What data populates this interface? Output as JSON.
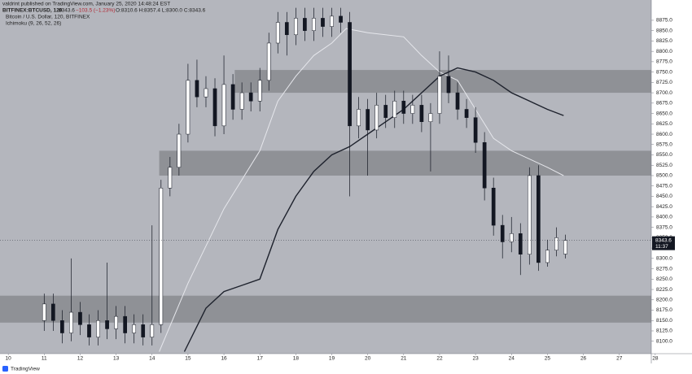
{
  "header": {
    "author": "valdrint published on TradingView.com, January 25, 2020 14:48:24 EST",
    "symbol": "BITFINEX:BTCUSD, 120",
    "last": "8343.6",
    "change": "−103.5 (−1.23%)",
    "ohlc": "O:8310.6 H:8357.4 L:8300.0 C:8343.6",
    "description": "Bitcoin / U.S. Dollar, 120, BITFINEX",
    "indicator": "Ichimoku (9, 26, 52, 26)"
  },
  "chart_data": {
    "type": "candlestick",
    "x": [
      11,
      11.25,
      11.5,
      11.75,
      12,
      12.25,
      12.5,
      12.75,
      13,
      13.25,
      13.5,
      13.75,
      14,
      14.25,
      14.5,
      14.75,
      15,
      15.25,
      15.5,
      15.75,
      16,
      16.25,
      16.5,
      16.75,
      17,
      17.25,
      17.5,
      17.75,
      18,
      18.25,
      18.5,
      18.75,
      19,
      19.25,
      19.5,
      19.75,
      20,
      20.25,
      20.5,
      20.75,
      21,
      21.25,
      21.5,
      21.75,
      22,
      22.25,
      22.5,
      22.75,
      23,
      23.25,
      23.5,
      23.75,
      24,
      24.25,
      24.5,
      24.75,
      25,
      25.25,
      25.5
    ],
    "open": [
      8150,
      8190,
      8150,
      8120,
      8170,
      8140,
      8110,
      8150,
      8130,
      8160,
      8120,
      8140,
      8110,
      8140,
      8470,
      8520,
      8600,
      8730,
      8690,
      8710,
      8620,
      8720,
      8660,
      8700,
      8680,
      8730,
      8820,
      8870,
      8840,
      8880,
      8850,
      8880,
      8860,
      8885,
      8870,
      8620,
      8660,
      8610,
      8670,
      8640,
      8680,
      8650,
      8670,
      8630,
      8650,
      8740,
      8700,
      8660,
      8640,
      8580,
      8470,
      8380,
      8340,
      8360,
      8310,
      8500,
      8290,
      8320,
      8310.6
    ],
    "high": [
      8215,
      8215,
      8175,
      8300,
      8195,
      8165,
      8175,
      8290,
      8185,
      8185,
      8165,
      8165,
      8380,
      8490,
      8545,
      8625,
      8770,
      8780,
      8740,
      8735,
      8790,
      8745,
      8725,
      8725,
      8760,
      8845,
      8895,
      8895,
      8905,
      8905,
      8905,
      8905,
      8905,
      8905,
      8895,
      8690,
      8685,
      8700,
      8695,
      8705,
      8705,
      8695,
      8695,
      8675,
      8800,
      8790,
      8725,
      8685,
      8665,
      8605,
      8495,
      8405,
      8400,
      8385,
      8520,
      8525,
      8345,
      8375,
      8357.4
    ],
    "low": [
      8125,
      8125,
      8095,
      8100,
      8115,
      8090,
      8090,
      8105,
      8105,
      8095,
      8095,
      8090,
      8090,
      8120,
      8450,
      8500,
      8580,
      8665,
      8665,
      8595,
      8600,
      8635,
      8635,
      8655,
      8655,
      8705,
      8795,
      8790,
      8815,
      8825,
      8825,
      8835,
      8835,
      8845,
      8450,
      8590,
      8500,
      8590,
      8615,
      8615,
      8625,
      8625,
      8605,
      8510,
      8625,
      8675,
      8635,
      8615,
      8555,
      8440,
      8355,
      8300,
      8315,
      8260,
      8285,
      8270,
      8280,
      8305,
      8300
    ],
    "close": [
      8190,
      8150,
      8120,
      8170,
      8140,
      8110,
      8150,
      8130,
      8160,
      8120,
      8140,
      8110,
      8140,
      8470,
      8520,
      8600,
      8730,
      8690,
      8710,
      8620,
      8720,
      8660,
      8700,
      8680,
      8730,
      8820,
      8870,
      8840,
      8880,
      8850,
      8880,
      8860,
      8885,
      8870,
      8620,
      8660,
      8610,
      8670,
      8640,
      8680,
      8650,
      8670,
      8630,
      8650,
      8740,
      8700,
      8660,
      8640,
      8580,
      8470,
      8380,
      8340,
      8360,
      8310,
      8500,
      8290,
      8320,
      8350,
      8343.6
    ],
    "up_color": "#ffffff",
    "down_color": "#131722",
    "wick_color": "#131722",
    "ichimoku_lines": [
      {
        "color": "#e6e7ec",
        "x": [
          14.2,
          15,
          16,
          17,
          17.5,
          18,
          18.5,
          19,
          19.4,
          20,
          21,
          21.5,
          22,
          22.5,
          23,
          23.5,
          24,
          24.5,
          25,
          25.45
        ],
        "values": [
          8075,
          8240,
          8420,
          8560,
          8680,
          8740,
          8790,
          8820,
          8855,
          8845,
          8835,
          8790,
          8750,
          8730,
          8660,
          8590,
          8560,
          8540,
          8520,
          8500
        ]
      },
      {
        "color": "#1e222d",
        "x": [
          14.9,
          15.5,
          16,
          16.5,
          17,
          17.5,
          18,
          18.5,
          19,
          19.5,
          20,
          20.5,
          21,
          21.5,
          22,
          22.5,
          23,
          23.5,
          24,
          24.5,
          25,
          25.45
        ],
        "values": [
          8075,
          8180,
          8220,
          8235,
          8250,
          8370,
          8450,
          8510,
          8550,
          8570,
          8600,
          8630,
          8660,
          8700,
          8740,
          8760,
          8750,
          8730,
          8700,
          8680,
          8660,
          8645
        ]
      }
    ],
    "zones": [
      {
        "from": 8700,
        "to": 8755,
        "start": 16.3
      },
      {
        "from": 8500,
        "to": 8560,
        "start": 14.2
      },
      {
        "from": 8145,
        "to": 8210,
        "start": 9.77
      }
    ],
    "zone_color": "#8f9196",
    "last_price": {
      "value": 8343.6,
      "label": "8343.6",
      "countdown": "11:37"
    },
    "xlim": [
      9.77,
      27.89
    ],
    "xticks": [
      10,
      11,
      12,
      13,
      14,
      15,
      16,
      17,
      18,
      19,
      20,
      21,
      22,
      23,
      24,
      25,
      26,
      27,
      28
    ],
    "ylim": [
      8070,
      8924
    ],
    "yticks": [
      {
        "value": 8100,
        "label": "8100.0"
      },
      {
        "value": 8125,
        "label": "8125.0"
      },
      {
        "value": 8150,
        "label": "8150.0"
      },
      {
        "value": 8175,
        "label": "8175.0"
      },
      {
        "value": 8200,
        "label": "8200.0"
      },
      {
        "value": 8225,
        "label": "8225.0"
      },
      {
        "value": 8250,
        "label": "8250.0"
      },
      {
        "value": 8275,
        "label": "8275.0"
      },
      {
        "value": 8300,
        "label": "8300.0"
      },
      {
        "value": 8325,
        "label": "8325.0"
      },
      {
        "value": 8350,
        "label": "8350.0"
      },
      {
        "value": 8375,
        "label": "8375.0"
      },
      {
        "value": 8400,
        "label": "8400.0"
      },
      {
        "value": 8425,
        "label": "8425.0"
      },
      {
        "value": 8450,
        "label": "8450.0"
      },
      {
        "value": 8475,
        "label": "8475.0"
      },
      {
        "value": 8500,
        "label": "8500.0"
      },
      {
        "value": 8525,
        "label": "8525.0"
      },
      {
        "value": 8550,
        "label": "8550.0"
      },
      {
        "value": 8575,
        "label": "8575.0"
      },
      {
        "value": 8600,
        "label": "8600.0"
      },
      {
        "value": 8625,
        "label": "8625.0"
      },
      {
        "value": 8650,
        "label": "8650.0"
      },
      {
        "value": 8675,
        "label": "8675.0"
      },
      {
        "value": 8700,
        "label": "8700.0"
      },
      {
        "value": 8725,
        "label": "8725.0"
      },
      {
        "value": 8750,
        "label": "8750.0"
      },
      {
        "value": 8775,
        "label": "8775.0"
      },
      {
        "value": 8800,
        "label": "8800.0"
      },
      {
        "value": 8825,
        "label": "8825.0"
      },
      {
        "value": 8850,
        "label": "8850.0"
      },
      {
        "value": 8875,
        "label": "8875.0"
      }
    ],
    "background": "#b4b6bd"
  },
  "footer": {
    "brand": "TradingView"
  }
}
